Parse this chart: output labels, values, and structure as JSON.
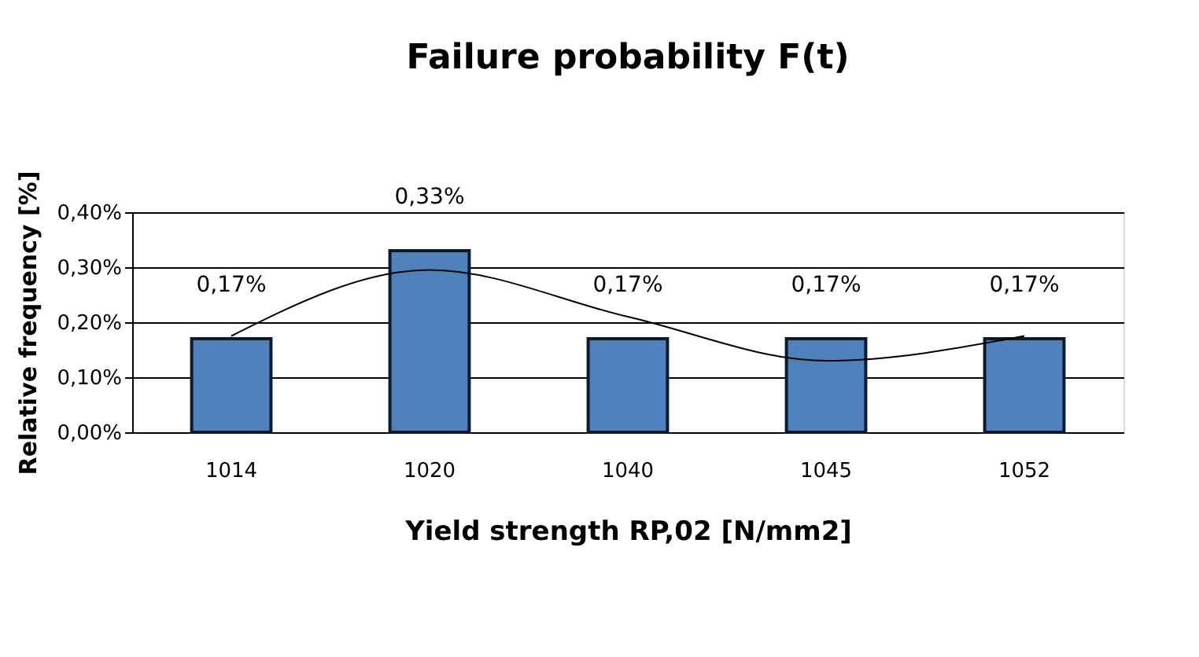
{
  "chart_data": {
    "type": "bar",
    "title": "Failure probability F(t)",
    "xlabel": "Yield strength RP,02 [N/mm2]",
    "ylabel": "Relative frequency [%]",
    "categories": [
      "1014",
      "1020",
      "1040",
      "1045",
      "1052"
    ],
    "series": [
      {
        "color": "#4f81bd",
        "values": [
          0.17,
          0.33,
          0.17,
          0.17,
          0.17
        ],
        "value_labels": [
          "0,17%",
          "0,33%",
          "0,17%",
          "0,17%",
          "0,17%"
        ]
      },
      {
        "type": "line",
        "color": "#000000",
        "values": [
          0.175,
          0.295,
          0.21,
          0.13,
          0.175
        ]
      }
    ],
    "ylim": [
      0,
      0.4
    ],
    "yticks": [
      {
        "value": 0,
        "label": "0,00%"
      },
      {
        "value": 0.1,
        "label": "0,10%"
      },
      {
        "value": 0.2,
        "label": "0,20%"
      },
      {
        "value": 0.3,
        "label": "0,30%"
      },
      {
        "value": 0.4,
        "label": "0,40%"
      }
    ],
    "grid": "y"
  }
}
